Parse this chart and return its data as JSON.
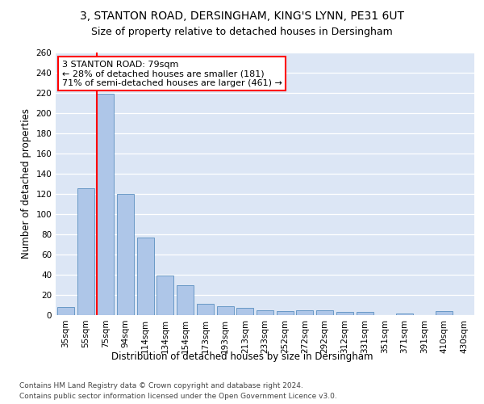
{
  "title1": "3, STANTON ROAD, DERSINGHAM, KING'S LYNN, PE31 6UT",
  "title2": "Size of property relative to detached houses in Dersingham",
  "xlabel": "Distribution of detached houses by size in Dersingham",
  "ylabel": "Number of detached properties",
  "footer1": "Contains HM Land Registry data © Crown copyright and database right 2024.",
  "footer2": "Contains public sector information licensed under the Open Government Licence v3.0.",
  "annotation_line1": "3 STANTON ROAD: 79sqm",
  "annotation_line2": "← 28% of detached houses are smaller (181)",
  "annotation_line3": "71% of semi-detached houses are larger (461) →",
  "bar_labels": [
    "35sqm",
    "55sqm",
    "75sqm",
    "94sqm",
    "114sqm",
    "134sqm",
    "154sqm",
    "173sqm",
    "193sqm",
    "213sqm",
    "233sqm",
    "252sqm",
    "272sqm",
    "292sqm",
    "312sqm",
    "331sqm",
    "351sqm",
    "371sqm",
    "391sqm",
    "410sqm",
    "430sqm"
  ],
  "bar_values": [
    8,
    126,
    219,
    120,
    77,
    39,
    30,
    11,
    9,
    7,
    5,
    4,
    5,
    5,
    3,
    3,
    0,
    2,
    0,
    4,
    0
  ],
  "bar_color": "#aec6e8",
  "bar_edge_color": "#5a8fc0",
  "ylim": [
    0,
    260
  ],
  "yticks": [
    0,
    20,
    40,
    60,
    80,
    100,
    120,
    140,
    160,
    180,
    200,
    220,
    240,
    260
  ],
  "plot_bg_color": "#dce6f5",
  "grid_color": "#ffffff",
  "title_fontsize": 10,
  "subtitle_fontsize": 9,
  "axis_label_fontsize": 8.5,
  "tick_fontsize": 7.5,
  "annotation_fontsize": 8,
  "footer_fontsize": 6.5
}
